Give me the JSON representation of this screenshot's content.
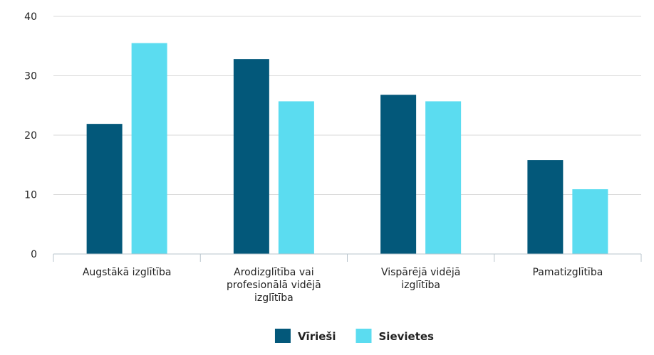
{
  "chart_data": {
    "type": "bar",
    "categories": [
      [
        "Augstākā izglītība"
      ],
      [
        "Arodizglītība vai",
        "profesionālā vidējā",
        "izglītība"
      ],
      [
        "Vispārējā vidējā",
        "izglītība"
      ],
      [
        "Pamatizglītība"
      ]
    ],
    "series": [
      {
        "name": "Vīrieši",
        "color": "#03587a",
        "values": [
          21.9,
          32.8,
          26.8,
          15.8
        ]
      },
      {
        "name": "Sievietes",
        "color": "#5bdcf0",
        "values": [
          35.5,
          25.7,
          25.7,
          10.9
        ]
      }
    ],
    "yticks": [
      0,
      10,
      20,
      30,
      40
    ],
    "ylim": [
      0,
      40
    ],
    "grid": true,
    "legend": "bottom-center"
  }
}
